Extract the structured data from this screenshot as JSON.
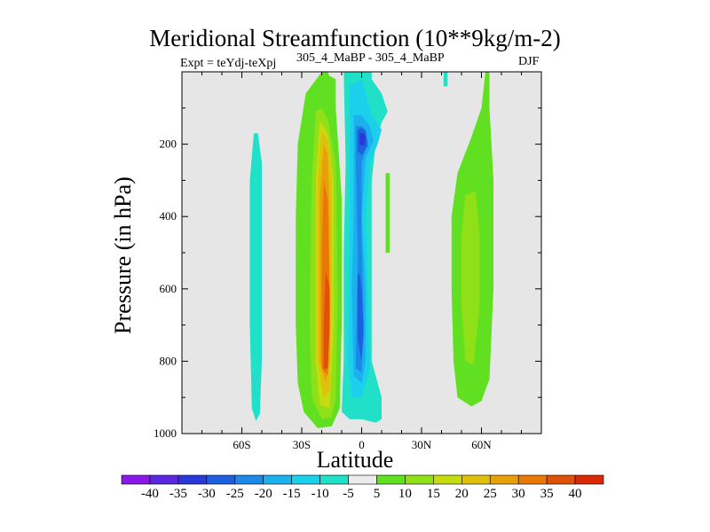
{
  "chart_data": {
    "type": "contour",
    "title": "Meridional Streamfunction (10**9kg/m-2)",
    "subtitle": "305_4_MaBP - 305_4_MaBP",
    "experiment_label": "Expt = teYdj-teXpj",
    "season": "DJF",
    "xlabel": "Latitude",
    "ylabel": "Pressure (in hPa)",
    "xlim": [
      -90,
      90
    ],
    "ylim": [
      1000,
      0
    ],
    "x_ticks": [
      {
        "value": -60,
        "label": "60S"
      },
      {
        "value": -30,
        "label": "30S"
      },
      {
        "value": 0,
        "label": "0"
      },
      {
        "value": 30,
        "label": "30N"
      },
      {
        "value": 60,
        "label": "60N"
      }
    ],
    "y_ticks": [
      {
        "value": 200,
        "label": "200"
      },
      {
        "value": 400,
        "label": "400"
      },
      {
        "value": 600,
        "label": "600"
      },
      {
        "value": 800,
        "label": "800"
      },
      {
        "value": 1000,
        "label": "1000"
      }
    ],
    "missing_color": "#e6e6e6",
    "colorbar": {
      "levels": [
        -40,
        -35,
        -30,
        -25,
        -20,
        -15,
        -10,
        -5,
        5,
        10,
        15,
        20,
        25,
        30,
        35,
        40
      ],
      "labels": [
        "-40",
        "-35",
        "-30",
        "-25",
        "-20",
        "-15",
        "-10",
        "-5",
        "5",
        "10",
        "15",
        "20",
        "25",
        "30",
        "35",
        "40"
      ],
      "colors": [
        "#8a18e8",
        "#5a28e0",
        "#2a38d8",
        "#1c60e0",
        "#1c88e8",
        "#1cb0ee",
        "#1cd0ec",
        "#20e0c8",
        "#ebebeb",
        "#60e020",
        "#90e018",
        "#c4dc10",
        "#e0c00c",
        "#e8a008",
        "#e87808",
        "#e05008",
        "#d82a04"
      ]
    },
    "regions": [
      {
        "name": "sh-weak-positive",
        "value": -7,
        "points": [
          [
            -52,
            170
          ],
          [
            -50,
            250
          ],
          [
            -50,
            500
          ],
          [
            -50,
            800
          ],
          [
            -51,
            945
          ],
          [
            -53,
            965
          ],
          [
            -55,
            930
          ],
          [
            -56,
            700
          ],
          [
            -56,
            300
          ],
          [
            -54,
            170
          ]
        ]
      },
      {
        "name": "sh-cell-pos-5",
        "value": 7,
        "points": [
          [
            -28,
            60
          ],
          [
            -32,
            200
          ],
          [
            -33,
            400
          ],
          [
            -33,
            700
          ],
          [
            -32,
            860
          ],
          [
            -29,
            940
          ],
          [
            -22,
            985
          ],
          [
            -15,
            980
          ],
          [
            -11,
            930
          ],
          [
            -10,
            700
          ],
          [
            -10,
            350
          ],
          [
            -13,
            100
          ],
          [
            -13,
            20
          ],
          [
            -20,
            0
          ]
        ]
      },
      {
        "name": "sh-cell-pos-10",
        "value": 12,
        "points": [
          [
            -23,
            110
          ],
          [
            -25,
            300
          ],
          [
            -26,
            700
          ],
          [
            -25,
            900
          ],
          [
            -20,
            960
          ],
          [
            -15,
            955
          ],
          [
            -13,
            900
          ],
          [
            -12,
            600
          ],
          [
            -13,
            250
          ],
          [
            -17,
            130
          ],
          [
            -20,
            100
          ]
        ]
      },
      {
        "name": "sh-cell-pos-15",
        "value": 17,
        "points": [
          [
            -21,
            135
          ],
          [
            -23,
            300
          ],
          [
            -23,
            800
          ],
          [
            -21,
            920
          ],
          [
            -16,
            930
          ],
          [
            -14,
            700
          ],
          [
            -14,
            300
          ],
          [
            -17,
            170
          ]
        ]
      },
      {
        "name": "sh-cell-pos-20",
        "value": 22,
        "points": [
          [
            -20,
            160
          ],
          [
            -22,
            300
          ],
          [
            -22,
            800
          ],
          [
            -19,
            900
          ],
          [
            -16,
            880
          ],
          [
            -15,
            600
          ],
          [
            -15,
            300
          ],
          [
            -17,
            190
          ]
        ]
      },
      {
        "name": "sh-cell-pos-25",
        "value": 27,
        "points": [
          [
            -19,
            200
          ],
          [
            -21,
            350
          ],
          [
            -21,
            800
          ],
          [
            -18,
            860
          ],
          [
            -16,
            800
          ],
          [
            -16,
            400
          ],
          [
            -17,
            230
          ]
        ]
      },
      {
        "name": "sh-cell-pos-30",
        "value": 32,
        "points": [
          [
            -19,
            300
          ],
          [
            -20,
            500
          ],
          [
            -20,
            820
          ],
          [
            -17,
            840
          ],
          [
            -16,
            600
          ],
          [
            -17,
            350
          ]
        ]
      },
      {
        "name": "sh-cell-pos-35",
        "value": 37,
        "points": [
          [
            -18,
            550
          ],
          [
            -19,
            700
          ],
          [
            -19,
            820
          ],
          [
            -17,
            820
          ],
          [
            -16,
            700
          ],
          [
            -16,
            600
          ]
        ]
      },
      {
        "name": "eq-neg-5",
        "value": -7,
        "points": [
          [
            -9,
            0
          ],
          [
            -8,
            250
          ],
          [
            -9,
            500
          ],
          [
            -9,
            800
          ],
          [
            -10,
            940
          ],
          [
            -6,
            960
          ],
          [
            0,
            960
          ],
          [
            7,
            970
          ],
          [
            10,
            960
          ],
          [
            10,
            900
          ],
          [
            5,
            800
          ],
          [
            5,
            500
          ],
          [
            5,
            300
          ],
          [
            7,
            200
          ],
          [
            10,
            140
          ],
          [
            13,
            110
          ],
          [
            10,
            60
          ],
          [
            5,
            20
          ],
          [
            5,
            0
          ]
        ]
      },
      {
        "name": "eq-neg-10",
        "value": -12,
        "points": [
          [
            -6,
            40
          ],
          [
            -6,
            400
          ],
          [
            -7,
            800
          ],
          [
            -5,
            900
          ],
          [
            0,
            900
          ],
          [
            4,
            820
          ],
          [
            3,
            600
          ],
          [
            2,
            400
          ],
          [
            4,
            250
          ],
          [
            8,
            200
          ],
          [
            10,
            160
          ],
          [
            5,
            120
          ],
          [
            2,
            60
          ],
          [
            0,
            20
          ]
        ]
      },
      {
        "name": "eq-neg-15",
        "value": -17,
        "points": [
          [
            -4,
            120
          ],
          [
            -4,
            400
          ],
          [
            -5,
            600
          ],
          [
            -4,
            840
          ],
          [
            0,
            860
          ],
          [
            2,
            800
          ],
          [
            2,
            600
          ],
          [
            0,
            400
          ],
          [
            2,
            240
          ],
          [
            6,
            190
          ],
          [
            4,
            150
          ],
          [
            0,
            120
          ]
        ]
      },
      {
        "name": "eq-neg-20",
        "value": -22,
        "points": [
          [
            -3,
            150
          ],
          [
            -3,
            240
          ],
          [
            -2,
            500
          ],
          [
            -3,
            820
          ],
          [
            0,
            830
          ],
          [
            1,
            700
          ],
          [
            0,
            450
          ],
          [
            0,
            250
          ],
          [
            3,
            200
          ],
          [
            2,
            160
          ],
          [
            0,
            150
          ]
        ]
      },
      {
        "name": "eq-neg-25",
        "value": -27,
        "points": [
          [
            -2,
            160
          ],
          [
            -2,
            220
          ],
          [
            0,
            230
          ],
          [
            3,
            205
          ],
          [
            2,
            165
          ],
          [
            0,
            155
          ]
        ]
      },
      {
        "name": "eq-neg-30",
        "value": -32,
        "points": [
          [
            -1,
            170
          ],
          [
            -1,
            200
          ],
          [
            1,
            205
          ],
          [
            2,
            185
          ],
          [
            1,
            170
          ]
        ]
      },
      {
        "name": "eq-neg-25-lower",
        "value": -27,
        "points": [
          [
            -2,
            560
          ],
          [
            -2,
            740
          ],
          [
            0,
            800
          ],
          [
            1,
            720
          ],
          [
            0,
            600
          ],
          [
            -1,
            560
          ]
        ]
      },
      {
        "name": "upper-pos-5",
        "value": 7,
        "points": [
          [
            -20,
            0
          ],
          [
            -21,
            80
          ],
          [
            -17,
            90
          ],
          [
            -15,
            30
          ],
          [
            -17,
            0
          ]
        ]
      },
      {
        "name": "ne-pos-strip",
        "value": 7,
        "points": [
          [
            12,
            280
          ],
          [
            12,
            400
          ],
          [
            12,
            500
          ],
          [
            14,
            500
          ],
          [
            14,
            350
          ],
          [
            14,
            280
          ]
        ]
      },
      {
        "name": "nh-pos-5",
        "value": 7,
        "points": [
          [
            62,
            0
          ],
          [
            60,
            100
          ],
          [
            55,
            180
          ],
          [
            48,
            280
          ],
          [
            45,
            400
          ],
          [
            45,
            600
          ],
          [
            46,
            800
          ],
          [
            48,
            900
          ],
          [
            55,
            925
          ],
          [
            60,
            910
          ],
          [
            64,
            850
          ],
          [
            66,
            600
          ],
          [
            66,
            300
          ],
          [
            64,
            100
          ],
          [
            64,
            0
          ]
        ]
      },
      {
        "name": "nh-pos-10",
        "value": 12,
        "points": [
          [
            52,
            340
          ],
          [
            50,
            450
          ],
          [
            50,
            650
          ],
          [
            52,
            800
          ],
          [
            56,
            810
          ],
          [
            59,
            650
          ],
          [
            59,
            450
          ],
          [
            57,
            330
          ]
        ]
      },
      {
        "name": "nh-pos-upper-neg",
        "value": -7,
        "points": [
          [
            41,
            0
          ],
          [
            41,
            40
          ],
          [
            43,
            40
          ],
          [
            43,
            0
          ]
        ]
      }
    ]
  }
}
